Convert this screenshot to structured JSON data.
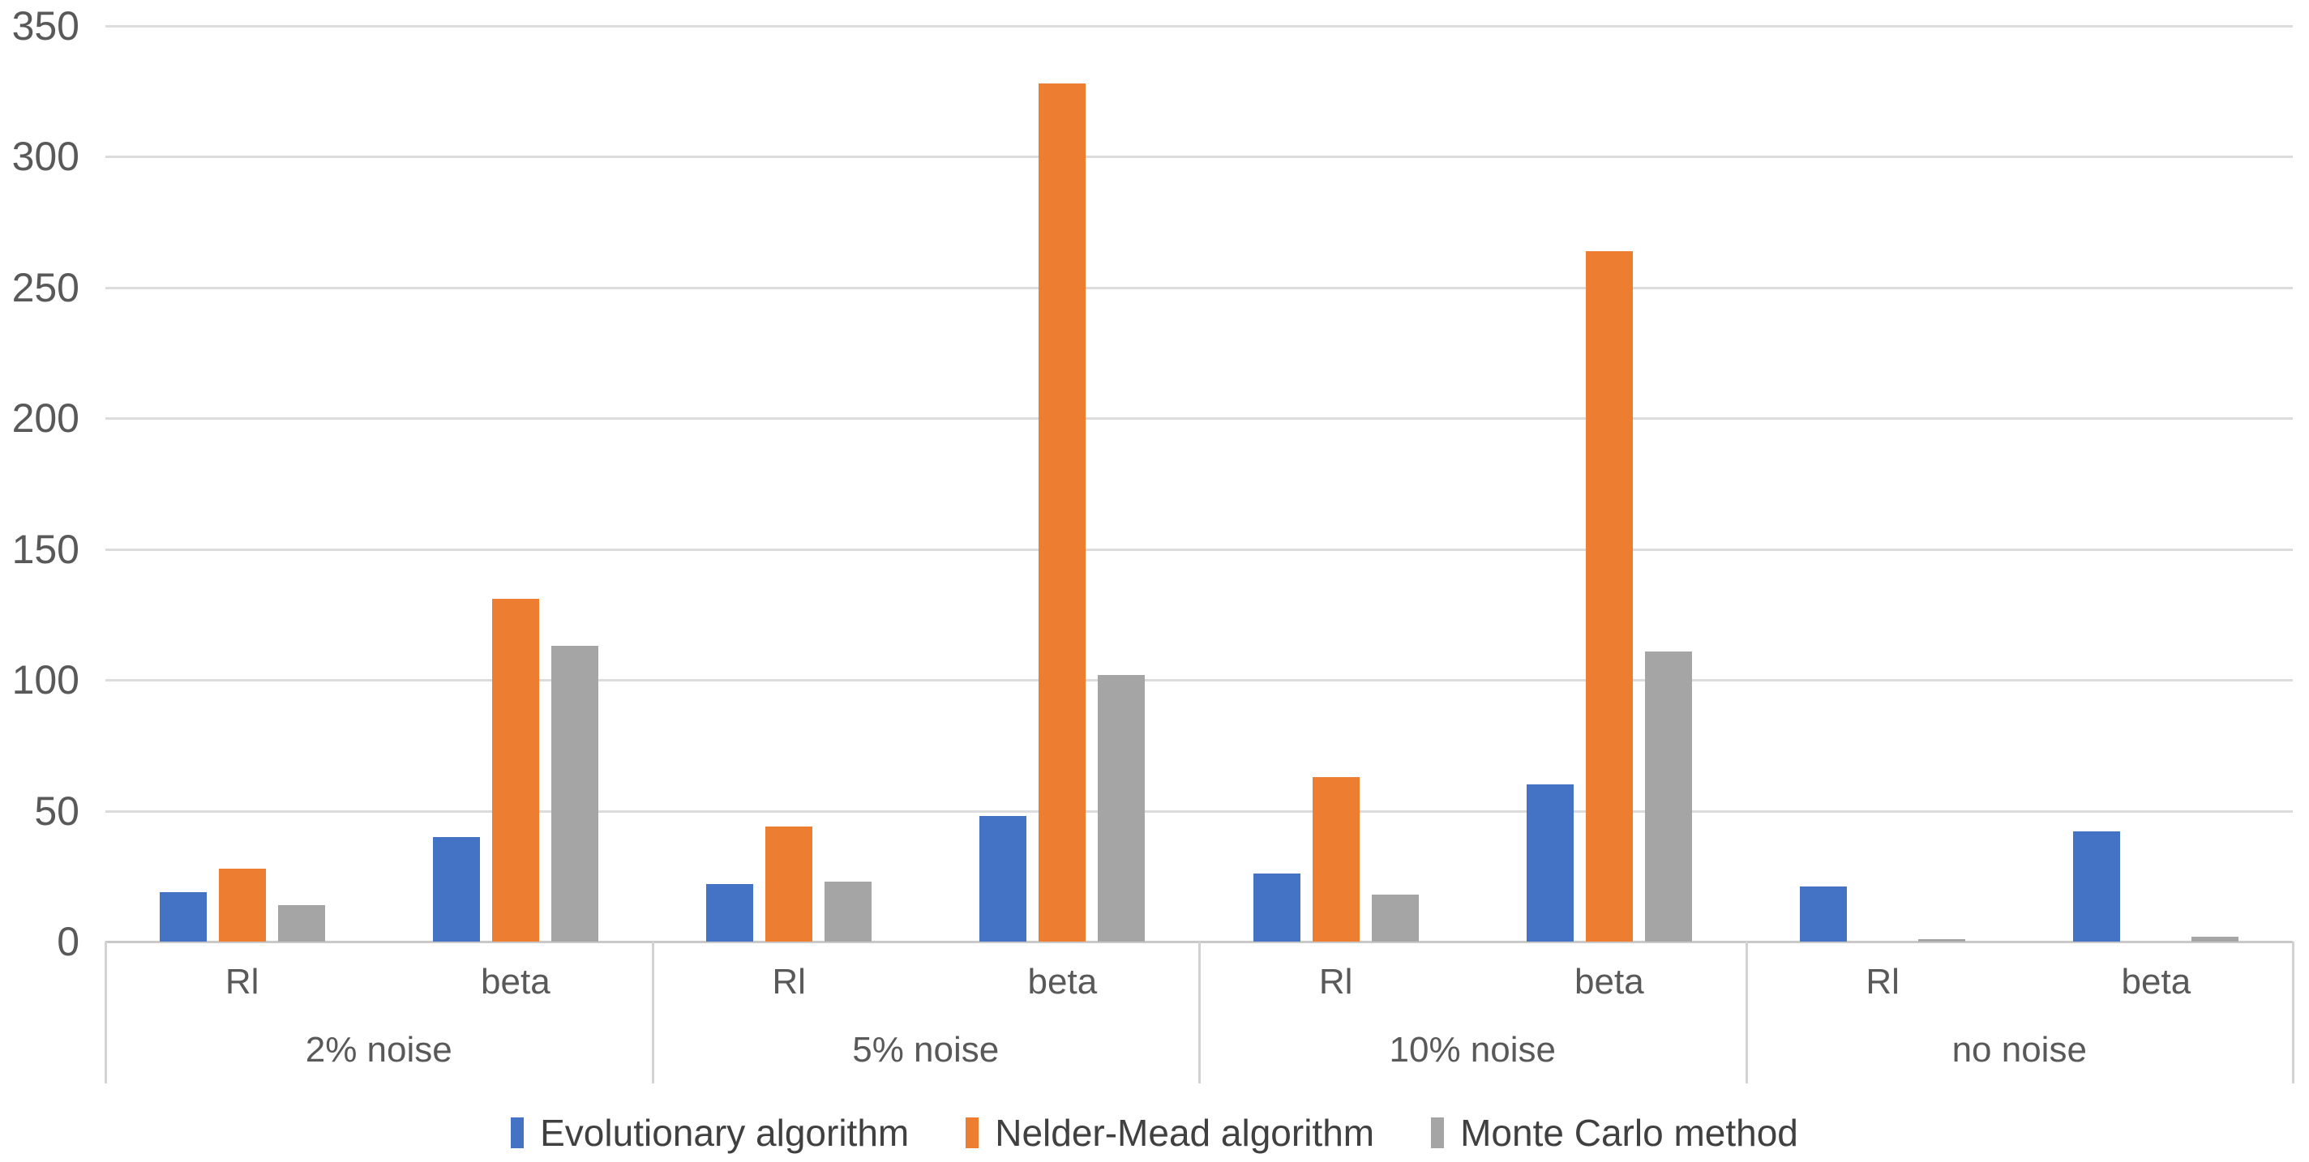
{
  "chart_data": {
    "type": "bar",
    "title": "",
    "xlabel": "",
    "ylabel": "",
    "y_axis": {
      "min": 0,
      "max": 350,
      "step": 50,
      "tick_labels": [
        "0",
        "50",
        "100",
        "150",
        "200",
        "250",
        "300",
        "350"
      ],
      "grid": true
    },
    "groups": [
      {
        "label": "2% noise",
        "subcategories": [
          "Rl",
          "beta"
        ]
      },
      {
        "label": "5% noise",
        "subcategories": [
          "Rl",
          "beta"
        ]
      },
      {
        "label": "10% noise",
        "subcategories": [
          "Rl",
          "beta"
        ]
      },
      {
        "label": "no noise",
        "subcategories": [
          "Rl",
          "beta"
        ]
      }
    ],
    "slot_order": [
      "2% noise Rl",
      "2% noise beta",
      "5% noise Rl",
      "5% noise beta",
      "10% noise Rl",
      "10% noise beta",
      "no noise Rl",
      "no noise beta"
    ],
    "series": [
      {
        "name": "Evolutionary algorithm",
        "color": "#4472C4",
        "values": [
          19,
          40,
          22,
          48,
          26,
          60,
          21,
          42
        ]
      },
      {
        "name": "Nelder-Mead algorithm",
        "color": "#ED7D31",
        "values": [
          28,
          131,
          44,
          328,
          63,
          264,
          0,
          0
        ]
      },
      {
        "name": "Monte Carlo method",
        "color": "#A5A5A5",
        "values": [
          14,
          113,
          23,
          102,
          18,
          111,
          1,
          2
        ]
      }
    ],
    "legend_position": "bottom",
    "colors": {
      "gridline": "#DCDCDC",
      "axis_line": "#C9C9C9",
      "tick_text": "#595959",
      "legend_text": "#404040"
    }
  }
}
